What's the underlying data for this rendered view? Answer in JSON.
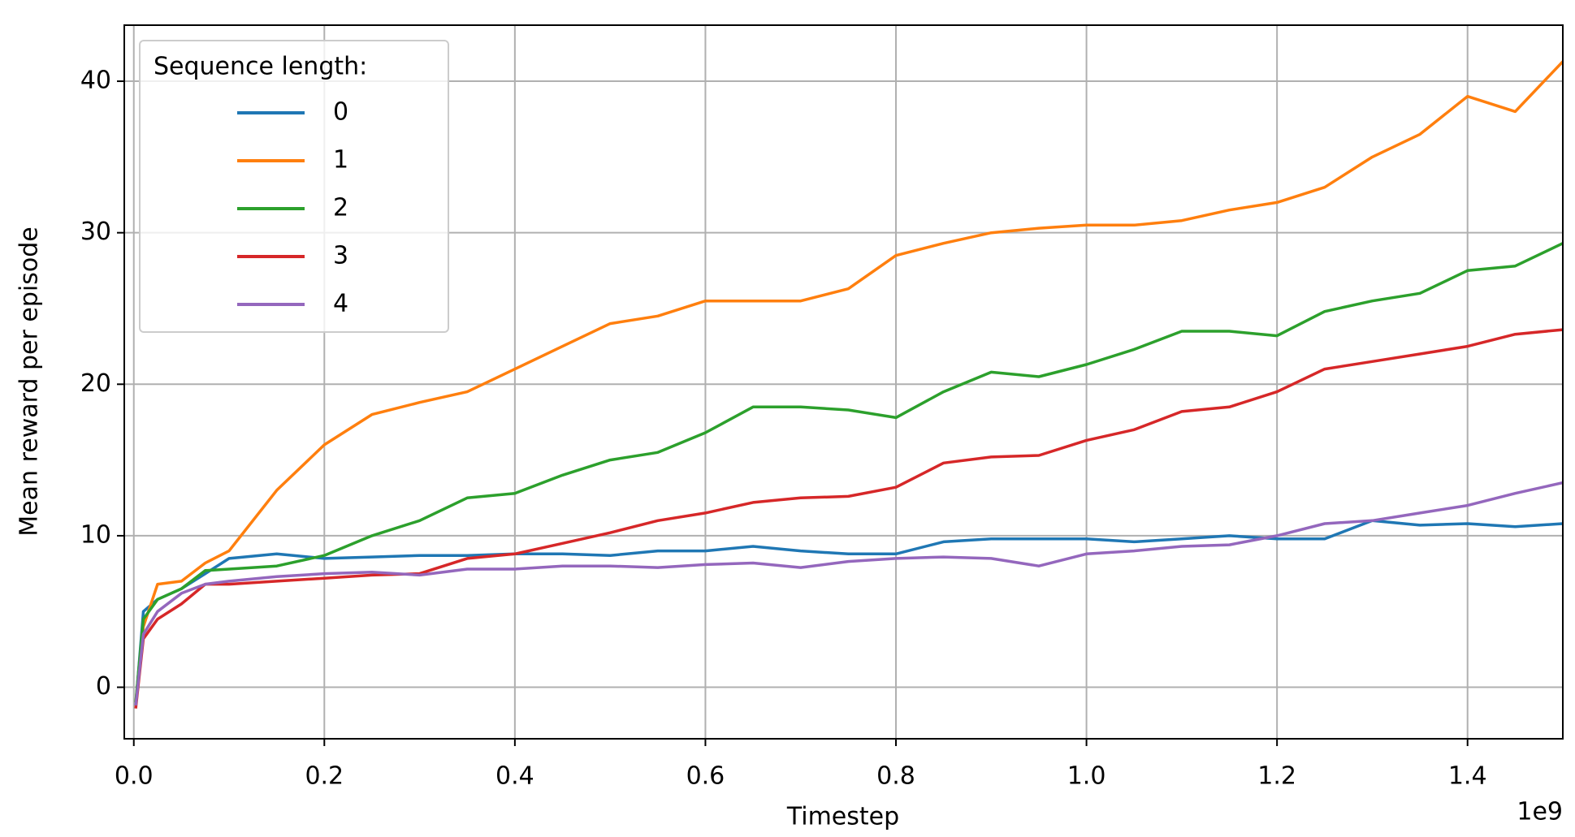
{
  "chart_data": {
    "type": "line",
    "x_label": "Timestep",
    "x_offset_label": "1e9",
    "y_label": "Mean reward per episode",
    "legend_title": "Sequence length:",
    "legend_position": "upper left",
    "grid": true,
    "x": [
      0.002,
      0.01,
      0.025,
      0.05,
      0.075,
      0.1,
      0.15,
      0.2,
      0.25,
      0.3,
      0.35,
      0.4,
      0.45,
      0.5,
      0.55,
      0.6,
      0.65,
      0.7,
      0.75,
      0.8,
      0.85,
      0.9,
      0.95,
      1.0,
      1.05,
      1.1,
      1.15,
      1.2,
      1.25,
      1.3,
      1.35,
      1.4,
      1.45,
      1.5
    ],
    "series": [
      {
        "name": "0",
        "color": "#1f77b4",
        "values": [
          -1.2,
          5,
          5.8,
          6.5,
          7.5,
          8.5,
          8.8,
          8.5,
          8.6,
          8.7,
          8.7,
          8.8,
          8.8,
          8.7,
          9,
          9,
          9.3,
          9,
          8.8,
          8.8,
          9.6,
          9.8,
          9.8,
          9.8,
          9.6,
          9.8,
          10,
          9.8,
          9.8,
          11,
          10.7,
          10.8,
          10.6,
          10.8
        ]
      },
      {
        "name": "1",
        "color": "#ff7f0e",
        "values": [
          -1,
          4,
          6.8,
          7,
          8.2,
          9,
          13,
          16,
          18,
          18.8,
          19.5,
          21,
          22.5,
          24,
          24.5,
          25.5,
          25.5,
          25.5,
          26.3,
          28.5,
          29.3,
          30,
          30.3,
          30.5,
          30.5,
          30.8,
          31.5,
          32,
          33,
          35,
          36.5,
          39,
          38,
          41.3
        ]
      },
      {
        "name": "2",
        "color": "#2ca02c",
        "values": [
          -1,
          4.5,
          5.8,
          6.5,
          7.7,
          7.8,
          8,
          8.7,
          10,
          11,
          12.5,
          12.8,
          14,
          15,
          15.5,
          16.8,
          18.5,
          18.5,
          18.3,
          17.8,
          19.5,
          20.8,
          20.5,
          21.3,
          22.3,
          23.5,
          23.5,
          23.2,
          24.8,
          25.5,
          26,
          27.5,
          27.8,
          29.3
        ]
      },
      {
        "name": "3",
        "color": "#d62728",
        "values": [
          -1.4,
          3.2,
          4.5,
          5.5,
          6.8,
          6.8,
          7,
          7.2,
          7.4,
          7.5,
          8.5,
          8.8,
          9.5,
          10.2,
          11,
          11.5,
          12.2,
          12.5,
          12.6,
          13.2,
          14.8,
          15.2,
          15.3,
          16.3,
          17,
          18.2,
          18.5,
          19.5,
          21,
          21.5,
          22,
          22.5,
          23.3,
          23.6
        ]
      },
      {
        "name": "4",
        "color": "#9467bd",
        "values": [
          -1.2,
          3.5,
          5,
          6.2,
          6.8,
          7,
          7.3,
          7.5,
          7.6,
          7.4,
          7.8,
          7.8,
          8,
          8,
          7.9,
          8.1,
          8.2,
          7.9,
          8.3,
          8.5,
          8.6,
          8.5,
          8,
          8.8,
          9,
          9.3,
          9.4,
          10,
          10.8,
          11,
          11.5,
          12,
          12.8,
          13.5
        ]
      }
    ],
    "xlim": [
      -0.01,
      1.5
    ],
    "ylim": [
      -3.4,
      43.7
    ],
    "xticks": [
      {
        "value": 0,
        "label": "0.0"
      },
      0.2,
      0.4,
      0.6,
      0.8,
      {
        "value": 1,
        "label": "1.0"
      },
      1.2,
      1.4
    ],
    "yticks": [
      0,
      10,
      20,
      30,
      40
    ]
  }
}
